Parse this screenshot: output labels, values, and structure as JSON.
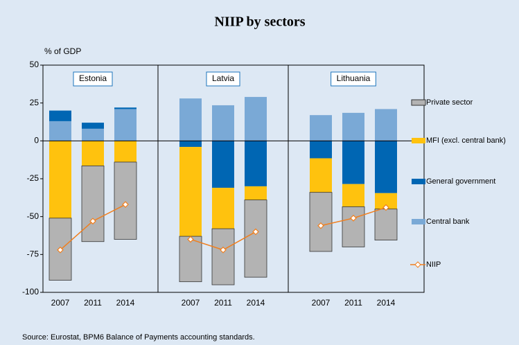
{
  "chart_data": {
    "type": "bar",
    "title": "NIIP by sectors",
    "y_label": "% of GDP",
    "source": "Source: Eurostat, BPM6 Balance of Payments accounting standards.",
    "groups": [
      "Estonia",
      "Latvia",
      "Lithuania"
    ],
    "categories": [
      "2007",
      "2011",
      "2014",
      "2007",
      "2011",
      "2014",
      "2007",
      "2011",
      "2014"
    ],
    "ylim": [
      -100,
      50
    ],
    "yticks": [
      -100,
      -75,
      -50,
      -25,
      0,
      25,
      50
    ],
    "stacked": true,
    "series": [
      {
        "name": "Private sector",
        "color": "#b3b3b3",
        "values": [
          -41,
          -50,
          -51,
          -30,
          -37,
          -51,
          -39,
          -26.5,
          -20.5
        ]
      },
      {
        "name": "MFI (excl. central bank)",
        "color": "#ffc20e",
        "values": [
          -51,
          -16.5,
          -14,
          -59,
          -27,
          -9,
          -22.5,
          -15,
          -10.5
        ]
      },
      {
        "name": "General government",
        "color": "#0066b3",
        "values": [
          7,
          4,
          1,
          -4,
          -31,
          -30,
          -11.5,
          -28.5,
          -34.5
        ]
      },
      {
        "name": "Central bank",
        "color": "#7aa9d6",
        "values": [
          13,
          8,
          21,
          28,
          23.5,
          29,
          17,
          18.5,
          21
        ]
      },
      {
        "name": "NIIP",
        "type": "line",
        "color": "#f07f1e",
        "values": [
          -72,
          -53,
          -42,
          -65,
          -72,
          -60,
          -56,
          -51,
          -44
        ]
      }
    ]
  }
}
